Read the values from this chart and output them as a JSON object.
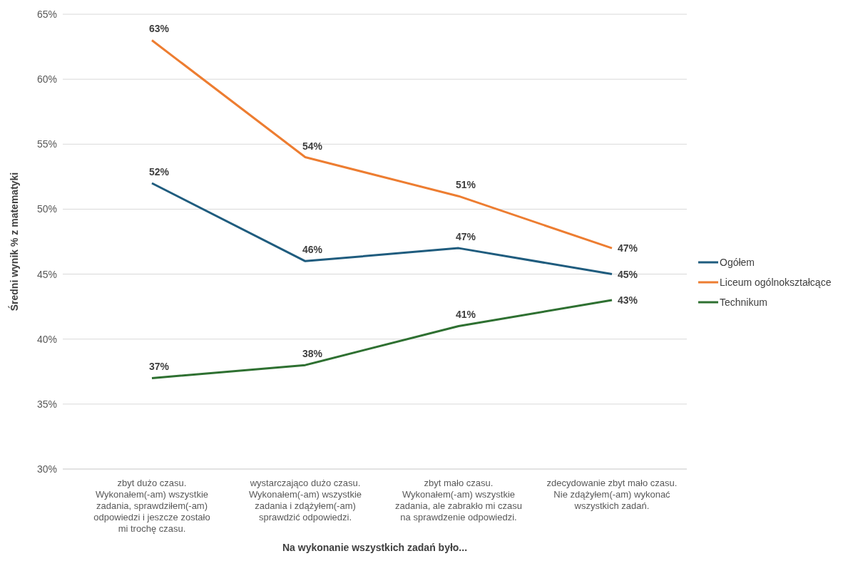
{
  "chart_data": {
    "type": "line",
    "xlabel": "Na wykonanie wszystkich zadań było...",
    "ylabel": "Średni wynik % z matematyki",
    "categories": [
      "zbyt dużo czasu. Wykonałem(-am) wszystkie zadania, sprawdziłem(-am) odpowiedzi i jeszcze zostało mi trochę czasu.",
      "wystarczająco dużo czasu. Wykonałem(-am) wszystkie zadania i zdążyłem(-am) sprawdzić odpowiedzi.",
      "zbyt mało czasu. Wykonałem(-am) wszystkie zadania, ale zabrakło mi czasu na sprawdzenie odpowiedzi.",
      "zdecydowanie zbyt mało czasu. Nie zdążyłem(-am) wykonać wszystkich zadań."
    ],
    "series": [
      {
        "name": "Ogółem",
        "color": "#1f5c7e",
        "values": [
          52,
          46,
          47,
          45
        ],
        "value_labels": [
          "52%",
          "46%",
          "47%",
          "45%"
        ]
      },
      {
        "name": "Liceum ogólnokształcące",
        "color": "#ed7d31",
        "values": [
          63,
          54,
          51,
          47
        ],
        "value_labels": [
          "63%",
          "54%",
          "51%",
          "47%"
        ]
      },
      {
        "name": "Technikum",
        "color": "#2e7031",
        "values": [
          37,
          38,
          41,
          43
        ],
        "value_labels": [
          "37%",
          "38%",
          "41%",
          "43%"
        ]
      }
    ],
    "ylim": [
      30,
      65
    ],
    "yticks": [
      {
        "value": 30,
        "label": "30%"
      },
      {
        "value": 35,
        "label": "35%"
      },
      {
        "value": 40,
        "label": "40%"
      },
      {
        "value": 45,
        "label": "45%"
      },
      {
        "value": 50,
        "label": "50%"
      },
      {
        "value": 55,
        "label": "55%"
      },
      {
        "value": 60,
        "label": "60%"
      },
      {
        "value": 65,
        "label": "65%"
      }
    ],
    "grid": "y",
    "legend": "right",
    "marker": "none",
    "line_style": "solid"
  }
}
